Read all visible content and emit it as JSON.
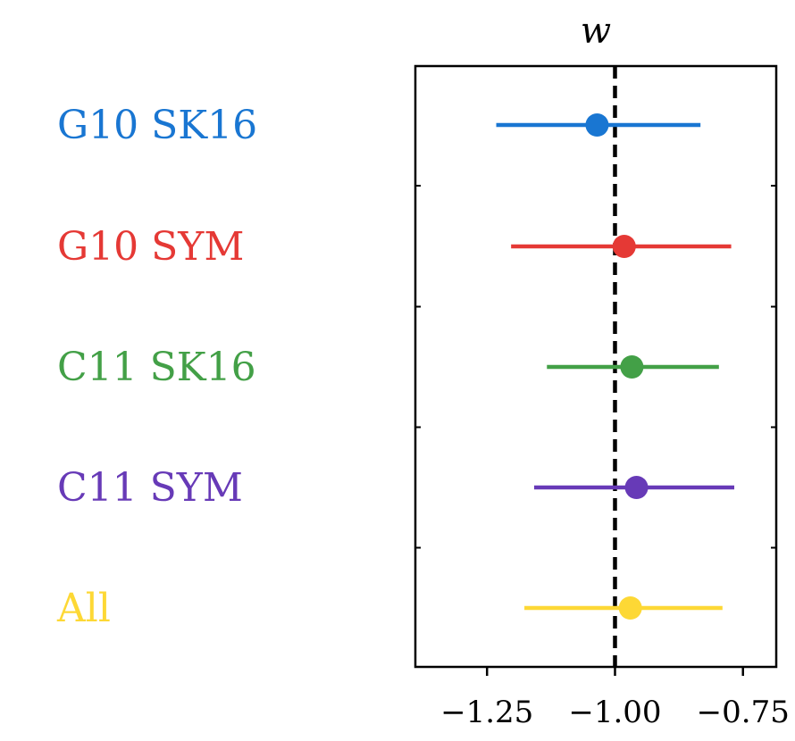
{
  "chart_data": {
    "type": "scatter",
    "title": "w",
    "xlabel": "",
    "ylabel": "",
    "xlim": [
      -1.39,
      -0.685
    ],
    "reference_line": {
      "x": -1.0,
      "style": "dashed",
      "color": "#000000"
    },
    "xticks": [
      -1.25,
      -1.0,
      -0.75
    ],
    "xtick_labels": [
      "−1.25",
      "−1.00",
      "−0.75"
    ],
    "grid": false,
    "series": [
      {
        "name": "G10 SK16",
        "color": "#1976d2",
        "value": -1.035,
        "lower": -1.232,
        "upper": -0.833
      },
      {
        "name": "G10 SYM",
        "color": "#e53935",
        "value": -0.982,
        "lower": -1.203,
        "upper": -0.773
      },
      {
        "name": "C11 SK16",
        "color": "#43a047",
        "value": -0.967,
        "lower": -1.133,
        "upper": -0.797
      },
      {
        "name": "C11 SYM",
        "color": "#673ab7",
        "value": -0.958,
        "lower": -1.158,
        "upper": -0.767
      },
      {
        "name": "All",
        "color": "#fdd835",
        "value": -0.97,
        "lower": -1.177,
        "upper": -0.79
      }
    ]
  }
}
